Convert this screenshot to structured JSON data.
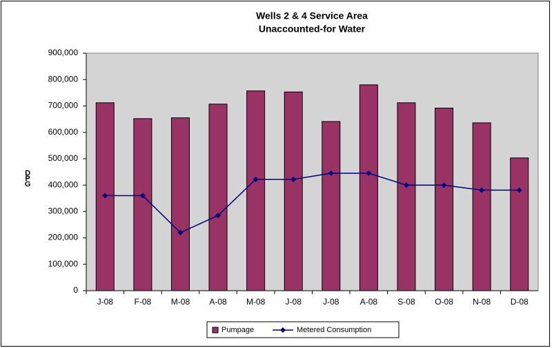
{
  "chart_data": {
    "type": "bar_line",
    "title": "Wells 2 & 4 Service Area",
    "subtitle": "Unaccounted-for Water",
    "y_label": "DPG",
    "categories": [
      "J-08",
      "F-08",
      "M-08",
      "A-08",
      "M-08",
      "J-08",
      "J-08",
      "A-08",
      "S-08",
      "O-08",
      "N-08",
      "D-08"
    ],
    "series": [
      {
        "name": "Pumpage",
        "type": "bar",
        "color": "#993366",
        "values": [
          712000,
          652000,
          655000,
          707000,
          757000,
          753000,
          641000,
          780000,
          712000,
          692000,
          636000,
          503000
        ]
      },
      {
        "name": "Metered Consumption",
        "type": "line",
        "color": "#000080",
        "values": [
          360000,
          360000,
          220000,
          285000,
          422000,
          422000,
          445000,
          445000,
          400000,
          400000,
          381000,
          381000
        ]
      }
    ],
    "ylim": [
      0,
      900000
    ],
    "yticks": [
      {
        "value": 0,
        "label": "0"
      },
      {
        "value": 100000,
        "label": "100,000"
      },
      {
        "value": 200000,
        "label": "200,000"
      },
      {
        "value": 300000,
        "label": "300,000"
      },
      {
        "value": 400000,
        "label": "400,000"
      },
      {
        "value": 500000,
        "label": "500,000"
      },
      {
        "value": 600000,
        "label": "600,000"
      },
      {
        "value": 700000,
        "label": "700,000"
      },
      {
        "value": 800000,
        "label": "800,000"
      },
      {
        "value": 900000,
        "label": "900,000"
      }
    ],
    "grid": false,
    "legend": "bottom"
  }
}
